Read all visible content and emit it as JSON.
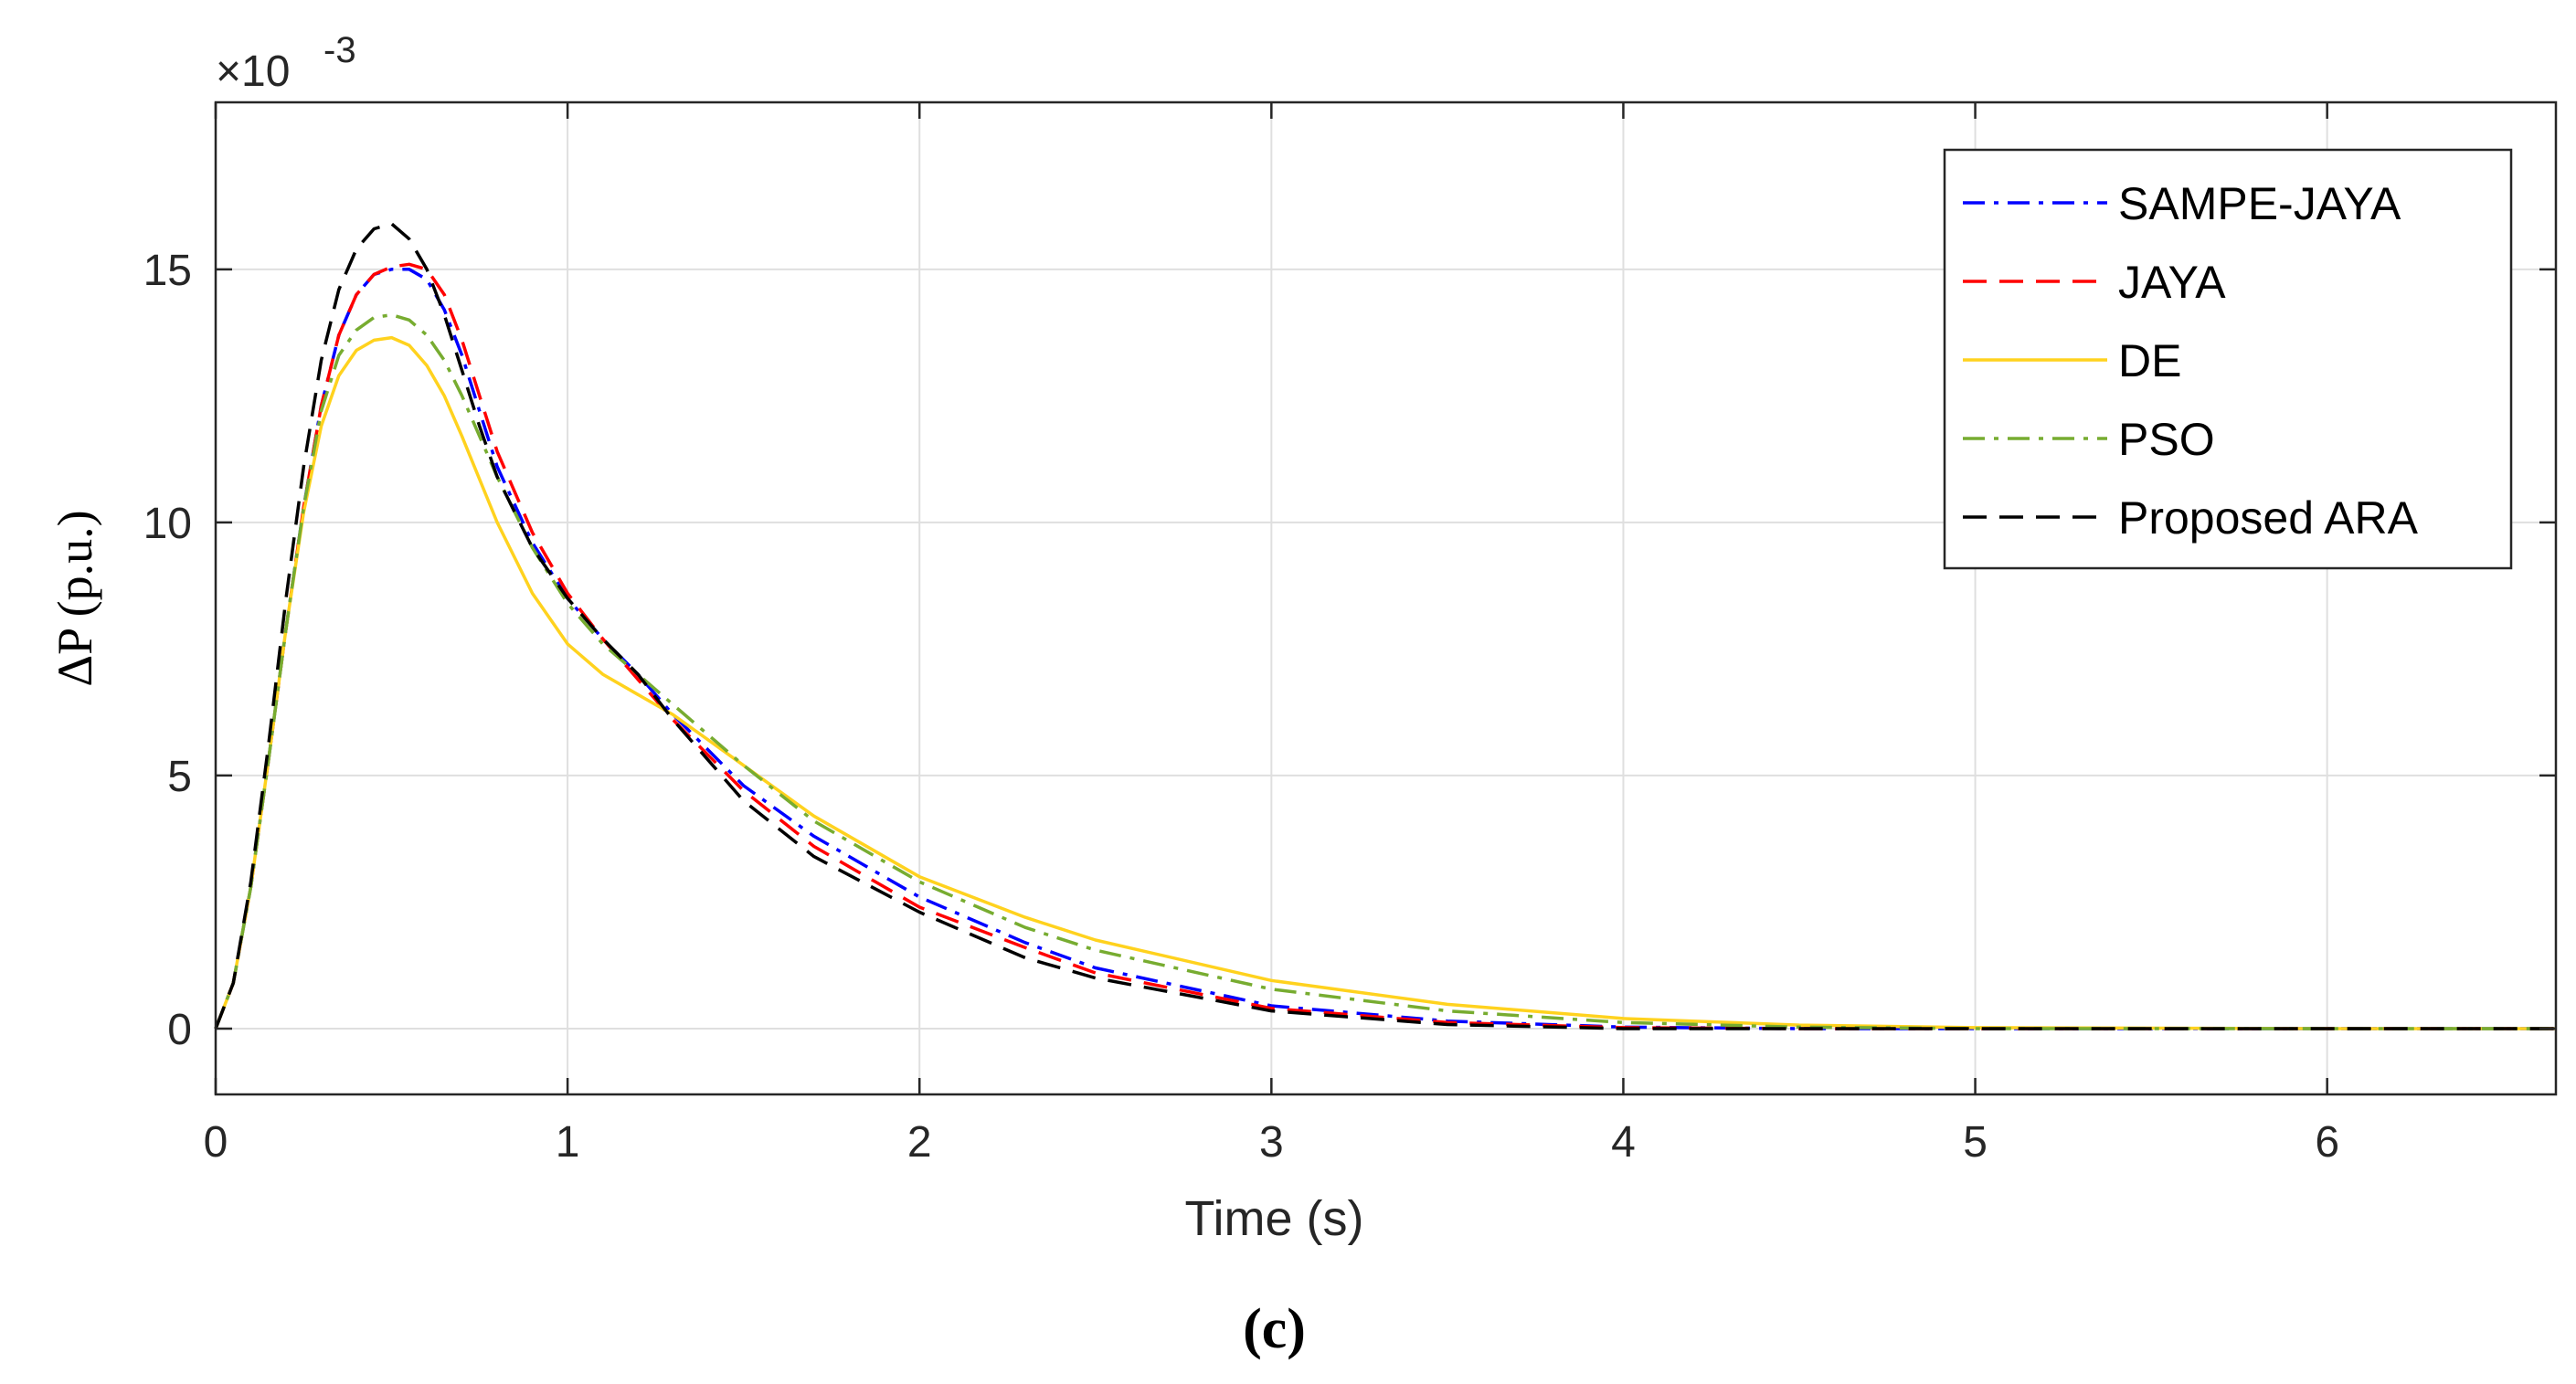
{
  "chart_data": {
    "type": "line",
    "xlabel": "Time (s)",
    "ylabel": "ΔP (p.u.)",
    "y_multiplier": {
      "base": "×10",
      "exponent": "-3"
    },
    "caption": "(c)",
    "xlim": [
      0,
      6.65
    ],
    "ylim": [
      -1.3,
      18.3
    ],
    "xticks": [
      0,
      1,
      2,
      3,
      4,
      5,
      6
    ],
    "xtick_labels": [
      "0",
      "1",
      "2",
      "3",
      "4",
      "5",
      "6"
    ],
    "yticks": [
      0,
      5,
      10,
      15
    ],
    "ytick_labels": [
      "0",
      "5",
      "10",
      "15"
    ],
    "grid": true,
    "legend_position": "top-right",
    "series": [
      {
        "name": "SAMPE-JAYA",
        "color": "#0000ff",
        "dash": "dashdot",
        "x": [
          0,
          0.05,
          0.1,
          0.15,
          0.2,
          0.25,
          0.3,
          0.35,
          0.4,
          0.45,
          0.5,
          0.55,
          0.6,
          0.65,
          0.7,
          0.75,
          0.8,
          0.9,
          1.0,
          1.1,
          1.2,
          1.3,
          1.4,
          1.5,
          1.7,
          2.0,
          2.3,
          2.5,
          3.0,
          3.5,
          4.0,
          4.5,
          5.0,
          6.0,
          6.65
        ],
        "y": [
          0,
          0.9,
          2.8,
          5.3,
          7.9,
          10.3,
          12.3,
          13.7,
          14.5,
          14.9,
          15.0,
          15.0,
          14.8,
          14.2,
          13.3,
          12.2,
          11.1,
          9.6,
          8.5,
          7.7,
          7.0,
          6.2,
          5.5,
          4.8,
          3.8,
          2.6,
          1.7,
          1.2,
          0.45,
          0.15,
          0.03,
          0.0,
          0.0,
          0.0,
          0.0
        ]
      },
      {
        "name": "JAYA",
        "color": "#ff0000",
        "dash": "dashed",
        "x": [
          0,
          0.05,
          0.1,
          0.15,
          0.2,
          0.25,
          0.3,
          0.35,
          0.4,
          0.45,
          0.5,
          0.55,
          0.6,
          0.65,
          0.7,
          0.75,
          0.8,
          0.9,
          1.0,
          1.1,
          1.2,
          1.3,
          1.4,
          1.5,
          1.7,
          2.0,
          2.3,
          2.5,
          3.0,
          3.5,
          4.0,
          4.5,
          5.0,
          6.0,
          6.65
        ],
        "y": [
          0,
          0.9,
          2.8,
          5.3,
          7.9,
          10.3,
          12.3,
          13.7,
          14.5,
          14.9,
          15.05,
          15.1,
          15.0,
          14.5,
          13.6,
          12.5,
          11.4,
          9.8,
          8.6,
          7.7,
          6.9,
          6.1,
          5.4,
          4.7,
          3.6,
          2.4,
          1.6,
          1.1,
          0.4,
          0.12,
          0.02,
          0.0,
          0.0,
          0.0,
          0.0
        ]
      },
      {
        "name": "DE",
        "color": "#ffd21e",
        "dash": "solid",
        "x": [
          0,
          0.05,
          0.1,
          0.15,
          0.2,
          0.25,
          0.3,
          0.35,
          0.4,
          0.45,
          0.5,
          0.55,
          0.6,
          0.65,
          0.7,
          0.8,
          0.9,
          1.0,
          1.1,
          1.2,
          1.3,
          1.4,
          1.5,
          1.7,
          2.0,
          2.3,
          2.5,
          3.0,
          3.5,
          4.0,
          4.5,
          5.0,
          6.0,
          6.65
        ],
        "y": [
          0,
          0.9,
          2.8,
          5.3,
          7.9,
          10.2,
          11.9,
          12.9,
          13.4,
          13.6,
          13.65,
          13.5,
          13.1,
          12.5,
          11.7,
          10.0,
          8.6,
          7.6,
          7.0,
          6.6,
          6.2,
          5.7,
          5.2,
          4.2,
          3.0,
          2.2,
          1.75,
          0.95,
          0.48,
          0.2,
          0.07,
          0.02,
          0.0,
          0.0
        ]
      },
      {
        "name": "PSO",
        "color": "#77ac30",
        "dash": "dashdot",
        "x": [
          0,
          0.05,
          0.1,
          0.15,
          0.2,
          0.25,
          0.3,
          0.35,
          0.4,
          0.45,
          0.5,
          0.55,
          0.6,
          0.65,
          0.7,
          0.8,
          0.9,
          1.0,
          1.1,
          1.2,
          1.3,
          1.4,
          1.5,
          1.7,
          2.0,
          2.3,
          2.5,
          3.0,
          3.5,
          4.0,
          4.5,
          5.0,
          6.0,
          6.65
        ],
        "y": [
          0,
          0.9,
          2.8,
          5.3,
          7.9,
          10.3,
          12.2,
          13.3,
          13.8,
          14.05,
          14.1,
          14.0,
          13.7,
          13.2,
          12.5,
          10.9,
          9.5,
          8.4,
          7.6,
          7.0,
          6.4,
          5.8,
          5.2,
          4.1,
          2.9,
          2.0,
          1.55,
          0.78,
          0.35,
          0.12,
          0.03,
          0.0,
          0.0,
          0.0
        ]
      },
      {
        "name": "Proposed ARA",
        "color": "#000000",
        "dash": "dashed",
        "x": [
          0,
          0.05,
          0.1,
          0.15,
          0.2,
          0.25,
          0.3,
          0.35,
          0.4,
          0.45,
          0.5,
          0.55,
          0.6,
          0.65,
          0.7,
          0.75,
          0.8,
          0.9,
          1.0,
          1.1,
          1.2,
          1.3,
          1.4,
          1.5,
          1.7,
          2.0,
          2.3,
          2.5,
          3.0,
          3.5,
          4.0,
          4.5,
          5.0,
          6.0,
          6.65
        ],
        "y": [
          0,
          0.9,
          2.9,
          5.6,
          8.5,
          11.1,
          13.2,
          14.6,
          15.4,
          15.8,
          15.9,
          15.6,
          15.0,
          14.1,
          13.0,
          11.9,
          10.9,
          9.5,
          8.5,
          7.7,
          7.0,
          6.1,
          5.3,
          4.5,
          3.4,
          2.3,
          1.4,
          1.0,
          0.35,
          0.08,
          0.0,
          0.0,
          0.0,
          0.0,
          0.0
        ]
      }
    ]
  }
}
